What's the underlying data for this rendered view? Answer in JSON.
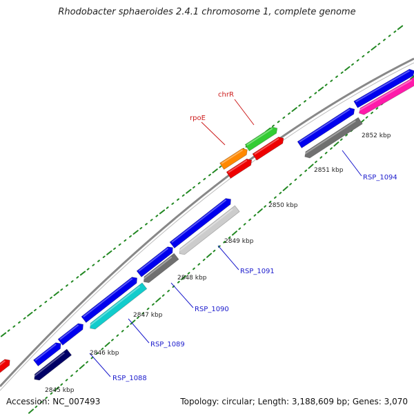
{
  "title": "Rhodobacter sphaeroides 2.4.1 chromosome 1, complete genome",
  "footer": {
    "accession": "Accession: NC_007493",
    "topology": "Topology: circular; Length: 3,188,609 bp; Genes: 3,070"
  },
  "kbp_labels": [
    "2845 kbp",
    "2846 kbp",
    "2847 kbp",
    "2848 kbp",
    "2849 kbp",
    "2850 kbp",
    "2851 kbp",
    "2852 kbp"
  ],
  "gene_labels": [
    "RSP_1088",
    "RSP_1089",
    "RSP_1090",
    "RSP_1091",
    "RSP_1094"
  ],
  "red_labels": [
    "rpoE",
    "chrR"
  ],
  "colors": {
    "blue": "#0000ee",
    "red": "#ee0000",
    "green": "#33cc33",
    "orange": "#ff8800",
    "magenta": "#ff1aaa",
    "cyan": "#11cccc",
    "gray": "#707070",
    "lightgray": "#cccccc",
    "navy": "#000066",
    "tick": "#228822",
    "backbone": "#888888"
  }
}
